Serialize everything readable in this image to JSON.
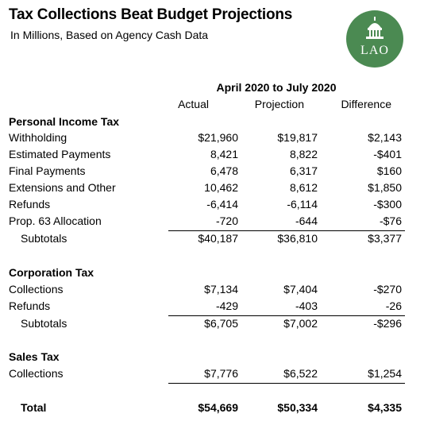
{
  "header": {
    "title": "Tax Collections Beat Budget Projections",
    "subtitle": "In Millions, Based on Agency Cash Data",
    "logo_text": "LAO",
    "logo_color": "#4b8a52"
  },
  "table": {
    "period": "April 2020 to July 2020",
    "columns": [
      "Actual",
      "Projection",
      "Difference"
    ],
    "pit": {
      "heading": "Personal Income Tax",
      "rows": [
        {
          "label": "Withholding",
          "actual": "$21,960",
          "projection": "$19,817",
          "difference": "$2,143"
        },
        {
          "label": "Estimated Payments",
          "actual": "8,421",
          "projection": "8,822",
          "difference": "-$401"
        },
        {
          "label": "Final Payments",
          "actual": "6,478",
          "projection": "6,317",
          "difference": "$160"
        },
        {
          "label": "Extensions and Other",
          "actual": "10,462",
          "projection": "8,612",
          "difference": "$1,850"
        },
        {
          "label": "Refunds",
          "actual": "-6,414",
          "projection": "-6,114",
          "difference": "-$300"
        },
        {
          "label": "Prop. 63 Allocation",
          "actual": "-720",
          "projection": "-644",
          "difference": "-$76"
        }
      ],
      "subtotal": {
        "label": "Subtotals",
        "actual": "$40,187",
        "projection": "$36,810",
        "difference": "$3,377"
      }
    },
    "corp": {
      "heading": "Corporation Tax",
      "rows": [
        {
          "label": "Collections",
          "actual": "$7,134",
          "projection": "$7,404",
          "difference": "-$270"
        },
        {
          "label": "Refunds",
          "actual": "-429",
          "projection": "-403",
          "difference": "-26"
        }
      ],
      "subtotal": {
        "label": "Subtotals",
        "actual": "$6,705",
        "projection": "$7,002",
        "difference": "-$296"
      }
    },
    "sales": {
      "heading": "Sales Tax",
      "rows": [
        {
          "label": "Collections",
          "actual": "$7,776",
          "projection": "$6,522",
          "difference": "$1,254"
        }
      ]
    },
    "total": {
      "label": "Total",
      "actual": "$54,669",
      "projection": "$50,334",
      "difference": "$4,335"
    }
  }
}
